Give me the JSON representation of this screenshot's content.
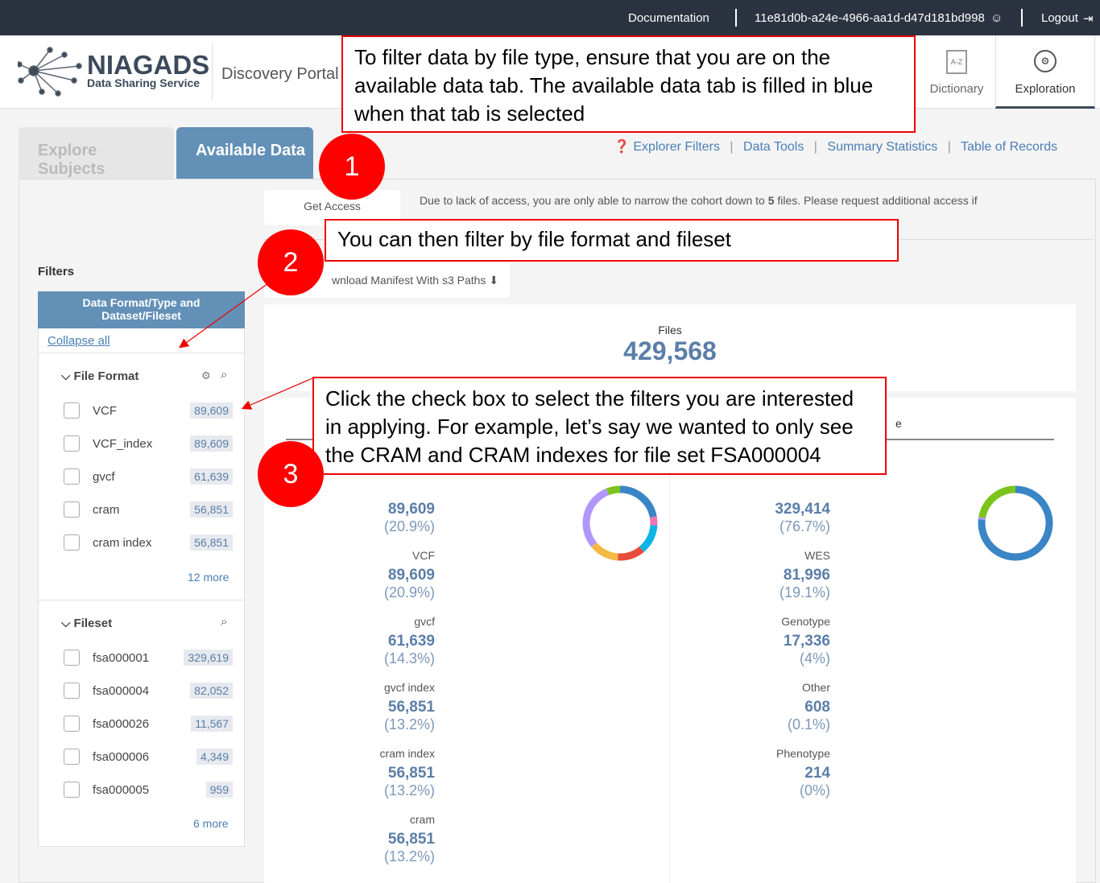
{
  "topbar": {
    "documentation": "Documentation",
    "user_id": "11e81d0b-a24e-4966-aa1d-d47d181bd998",
    "logout": "Logout"
  },
  "header": {
    "logo_main": "NIAGADS",
    "logo_sub": "Data Sharing Service",
    "portal": "Discovery Portal",
    "nav": [
      {
        "label": "Dictionary",
        "icon": "dictionary-icon"
      },
      {
        "label": "Exploration",
        "icon": "exploration-icon",
        "active": true
      }
    ]
  },
  "tabs": [
    {
      "label": "Explore Subjects"
    },
    {
      "label": "Available Data",
      "active": true
    }
  ],
  "links": [
    "Explorer Filters",
    "Data Tools",
    "Summary Statistics",
    "Table of Records"
  ],
  "get_access": "Get Access",
  "access_notice_pre": "Due to lack of access, you are only able to narrow the cohort down to ",
  "access_notice_num": "5",
  "access_notice_post": " files. Please request additional access if",
  "download_manifest": "wnload Manifest With s3 Paths",
  "filters": {
    "title": "Filters",
    "group_title": "Data Format/Type and Dataset/Fileset",
    "collapse_all": "Collapse all",
    "file_format": {
      "title": "File Format",
      "items": [
        {
          "label": "VCF",
          "count": "89,609"
        },
        {
          "label": "VCF_index",
          "count": "89,609"
        },
        {
          "label": "gvcf",
          "count": "61,639"
        },
        {
          "label": "cram",
          "count": "56,851"
        },
        {
          "label": "cram index",
          "count": "56,851"
        }
      ],
      "more": "12 more"
    },
    "fileset": {
      "title": "Fileset",
      "items": [
        {
          "label": "fsa000001",
          "count": "329,619"
        },
        {
          "label": "fsa000004",
          "count": "82,052"
        },
        {
          "label": "fsa000026",
          "count": "11,567"
        },
        {
          "label": "fsa000006",
          "count": "4,349"
        },
        {
          "label": "fsa000005",
          "count": "959"
        }
      ],
      "more": "6 more"
    }
  },
  "files": {
    "label": "Files",
    "count": "429,568"
  },
  "left_stats": [
    {
      "label": "",
      "value": "89,609",
      "pct": "(20.9%)"
    },
    {
      "label": "VCF",
      "value": "89,609",
      "pct": "(20.9%)"
    },
    {
      "label": "gvcf",
      "value": "61,639",
      "pct": "(14.3%)"
    },
    {
      "label": "gvcf index",
      "value": "56,851",
      "pct": "(13.2%)"
    },
    {
      "label": "cram index",
      "value": "56,851",
      "pct": "(13.2%)"
    },
    {
      "label": "cram",
      "value": "56,851",
      "pct": "(13.2%)"
    }
  ],
  "right_stats": [
    {
      "label": "",
      "value": "329,414",
      "pct": "(76.7%)"
    },
    {
      "label": "WES",
      "value": "81,996",
      "pct": "(19.1%)"
    },
    {
      "label": "Genotype",
      "value": "17,336",
      "pct": "(4%)"
    },
    {
      "label": "Other",
      "value": "608",
      "pct": "(0.1%)"
    },
    {
      "label": "Phenotype",
      "value": "214",
      "pct": "(0%)"
    }
  ],
  "right_header_partial": "e",
  "donut_left_colors": [
    "#3a85c6",
    "#f472b6",
    "#0bb5e6",
    "#e74c3c",
    "#f4b942",
    "#b197fc",
    "#7bc41c"
  ],
  "donut_right_colors": [
    "#3a85c6",
    "#b197fc",
    "#7bc41c"
  ],
  "callouts": [
    {
      "num": "1",
      "text": "To filter data by file type, ensure that you are on the available data tab. The available data tab is filled in blue when that tab is selected"
    },
    {
      "num": "2",
      "text": "You can then filter by file format and fileset"
    },
    {
      "num": "3",
      "text": "Click the check box to select the filters you are interested in applying. For example, let’s say we wanted to only see the CRAM and CRAM indexes for file set FSA000004"
    }
  ],
  "colors": {
    "accent": "#5f8db5",
    "topbar": "#2b3340",
    "callout_red": "#ff0000"
  }
}
